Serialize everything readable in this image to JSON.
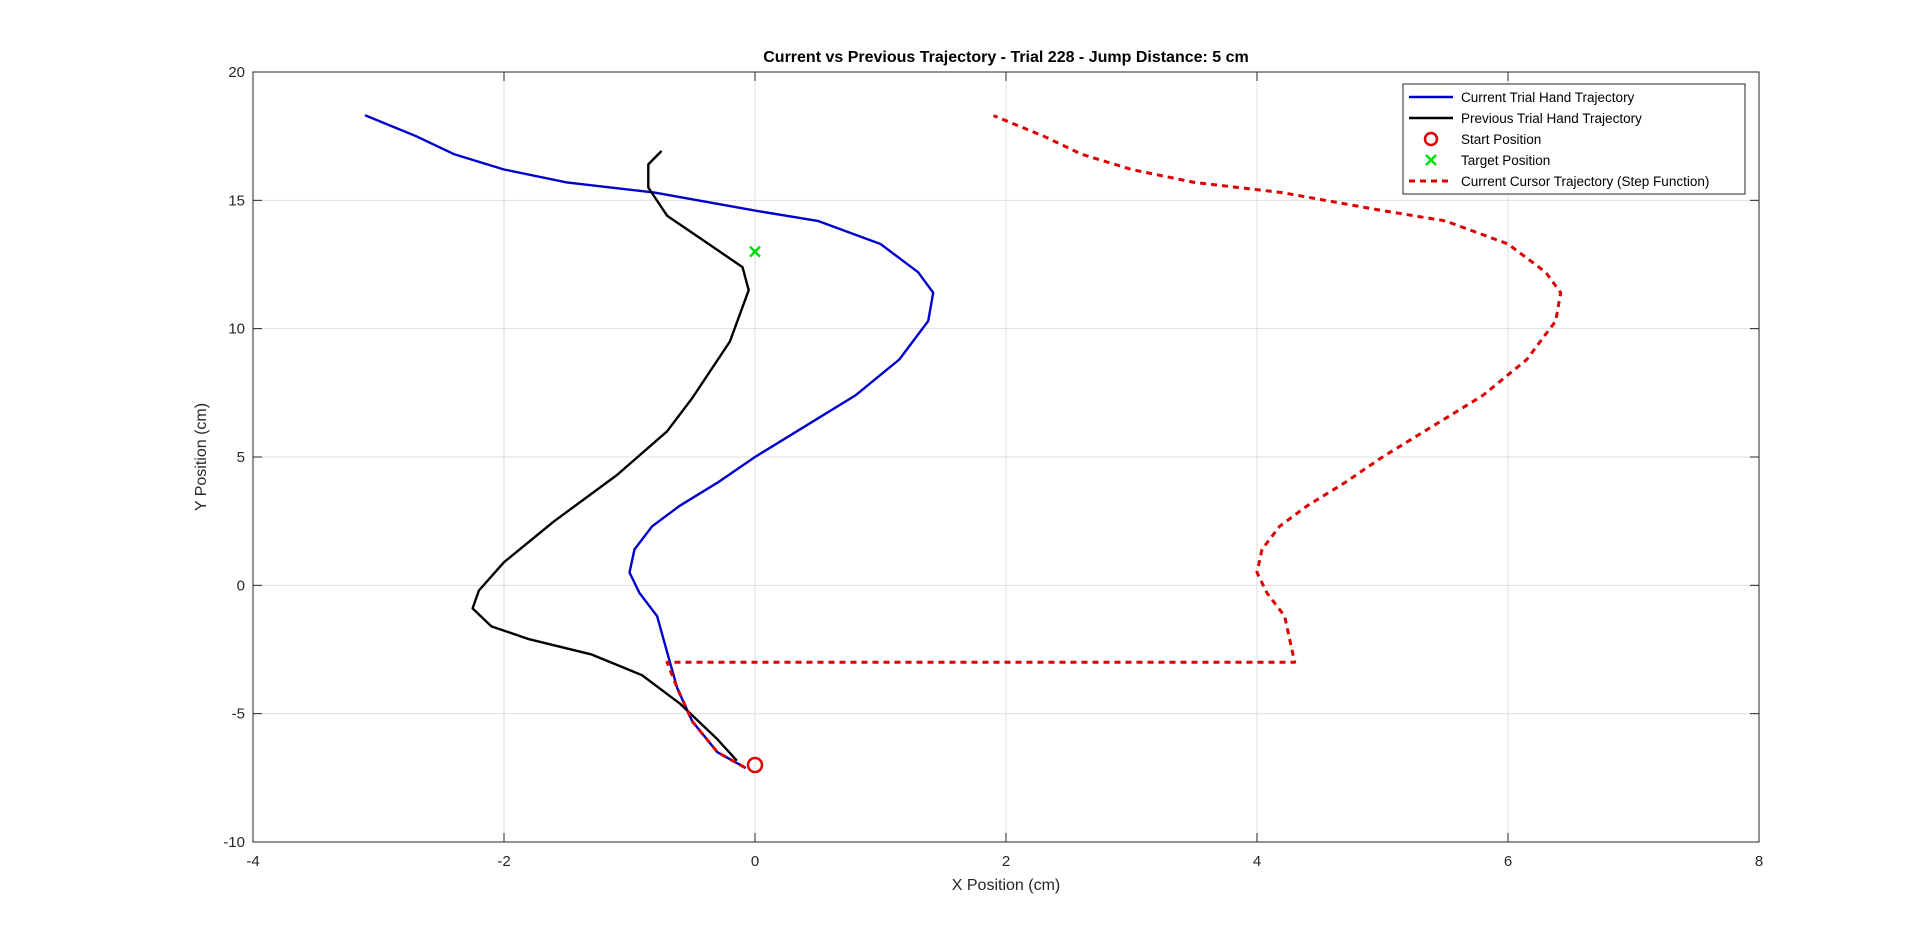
{
  "chart_data": {
    "type": "line",
    "title": "Current vs Previous Trajectory - Trial 228 - Jump Distance: 5 cm",
    "xlabel": "X Position (cm)",
    "ylabel": "Y Position (cm)",
    "xlim": [
      -4,
      8
    ],
    "ylim": [
      -10,
      20
    ],
    "xticks": [
      -4,
      -2,
      0,
      2,
      4,
      6,
      8
    ],
    "yticks": [
      -10,
      -5,
      0,
      5,
      10,
      15,
      20
    ],
    "grid": true,
    "legend_location": "top-right",
    "series": [
      {
        "name": "Current Trial Hand Trajectory",
        "kind": "line",
        "color": "#0000cc",
        "dash": "solid",
        "points": [
          [
            -0.08,
            -7.1
          ],
          [
            -0.3,
            -6.5
          ],
          [
            -0.5,
            -5.3
          ],
          [
            -0.62,
            -4.0
          ],
          [
            -0.7,
            -2.6
          ],
          [
            -0.78,
            -1.2
          ],
          [
            -0.92,
            -0.3
          ],
          [
            -1.0,
            0.5
          ],
          [
            -0.96,
            1.4
          ],
          [
            -0.82,
            2.3
          ],
          [
            -0.6,
            3.1
          ],
          [
            -0.3,
            4.0
          ],
          [
            0.0,
            5.0
          ],
          [
            0.4,
            6.2
          ],
          [
            0.8,
            7.4
          ],
          [
            1.15,
            8.8
          ],
          [
            1.38,
            10.3
          ],
          [
            1.42,
            11.4
          ],
          [
            1.3,
            12.2
          ],
          [
            1.0,
            13.3
          ],
          [
            0.5,
            14.2
          ],
          [
            0.0,
            14.6
          ],
          [
            -0.8,
            15.3
          ],
          [
            -1.5,
            15.7
          ],
          [
            -2.0,
            16.2
          ],
          [
            -2.4,
            16.8
          ],
          [
            -2.7,
            17.5
          ],
          [
            -3.1,
            18.3
          ]
        ]
      },
      {
        "name": "Previous Trial Hand Trajectory",
        "kind": "line",
        "color": "#000000",
        "dash": "solid",
        "points": [
          [
            -0.15,
            -6.8
          ],
          [
            -0.3,
            -6.0
          ],
          [
            -0.6,
            -4.6
          ],
          [
            -0.9,
            -3.5
          ],
          [
            -1.3,
            -2.7
          ],
          [
            -1.8,
            -2.1
          ],
          [
            -2.1,
            -1.6
          ],
          [
            -2.25,
            -0.9
          ],
          [
            -2.2,
            -0.2
          ],
          [
            -2.0,
            0.9
          ],
          [
            -1.6,
            2.5
          ],
          [
            -1.1,
            4.3
          ],
          [
            -0.7,
            6.0
          ],
          [
            -0.5,
            7.3
          ],
          [
            -0.2,
            9.5
          ],
          [
            -0.05,
            11.5
          ],
          [
            -0.1,
            12.4
          ],
          [
            -0.4,
            13.4
          ],
          [
            -0.7,
            14.4
          ],
          [
            -0.85,
            15.5
          ],
          [
            -0.85,
            16.4
          ],
          [
            -0.75,
            16.9
          ]
        ]
      },
      {
        "name": "Start Position",
        "kind": "marker",
        "marker": "circle",
        "color": "#dd0000",
        "points": [
          [
            0,
            -7
          ]
        ]
      },
      {
        "name": "Target Position",
        "kind": "marker",
        "marker": "x",
        "color": "#00dd00",
        "points": [
          [
            0,
            13
          ]
        ]
      },
      {
        "name": "Current Cursor Trajectory (Step Function)",
        "kind": "line",
        "color": "#dd0000",
        "dash": "dashed",
        "points": [
          [
            -0.08,
            -7.1
          ],
          [
            -0.3,
            -6.5
          ],
          [
            -0.5,
            -5.3
          ],
          [
            -0.62,
            -4.0
          ],
          [
            -0.7,
            -3.0
          ],
          [
            4.3,
            -3.0
          ],
          [
            4.22,
            -1.2
          ],
          [
            4.08,
            -0.3
          ],
          [
            4.0,
            0.5
          ],
          [
            4.04,
            1.4
          ],
          [
            4.18,
            2.3
          ],
          [
            4.4,
            3.1
          ],
          [
            4.7,
            4.0
          ],
          [
            5.0,
            5.0
          ],
          [
            5.4,
            6.2
          ],
          [
            5.8,
            7.4
          ],
          [
            6.15,
            8.8
          ],
          [
            6.38,
            10.3
          ],
          [
            6.42,
            11.4
          ],
          [
            6.3,
            12.2
          ],
          [
            6.0,
            13.3
          ],
          [
            5.5,
            14.2
          ],
          [
            5.0,
            14.6
          ],
          [
            4.2,
            15.3
          ],
          [
            3.5,
            15.7
          ],
          [
            3.0,
            16.2
          ],
          [
            2.6,
            16.8
          ],
          [
            2.3,
            17.5
          ],
          [
            1.9,
            18.3
          ]
        ]
      }
    ]
  }
}
